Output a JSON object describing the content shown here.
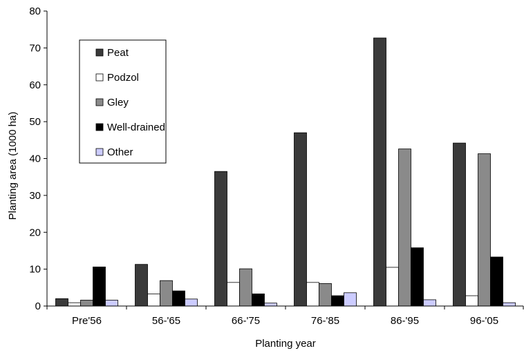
{
  "chart_data": {
    "type": "bar",
    "title": "",
    "xlabel": "Planting year",
    "ylabel": "Planting area (1000 ha)",
    "ylim": [
      0,
      80
    ],
    "yticks": [
      0,
      10,
      20,
      30,
      40,
      50,
      60,
      70,
      80
    ],
    "grid": false,
    "legend_position": "top-left",
    "categories": [
      "Pre'56",
      "56-'65",
      "66-'75",
      "76-'85",
      "86-'95",
      "96-'05"
    ],
    "series": [
      {
        "name": "Peat",
        "color": "#3a3a3a",
        "values": [
          2,
          11.3,
          36.5,
          47,
          72.7,
          44.2
        ]
      },
      {
        "name": "Podzol",
        "color": "#ffffff",
        "values": [
          0.9,
          3.3,
          6.4,
          6.4,
          10.5,
          2.8
        ]
      },
      {
        "name": "Gley",
        "color": "#8a8a8a",
        "values": [
          1.6,
          6.9,
          10.1,
          6.1,
          42.6,
          41.3
        ]
      },
      {
        "name": "Well-drained",
        "color": "#000000",
        "values": [
          10.6,
          4.1,
          3.3,
          2.8,
          15.8,
          13.3
        ]
      },
      {
        "name": "Other",
        "color": "#ccccff",
        "values": [
          1.6,
          1.9,
          0.8,
          3.6,
          1.7,
          0.9
        ]
      }
    ]
  }
}
